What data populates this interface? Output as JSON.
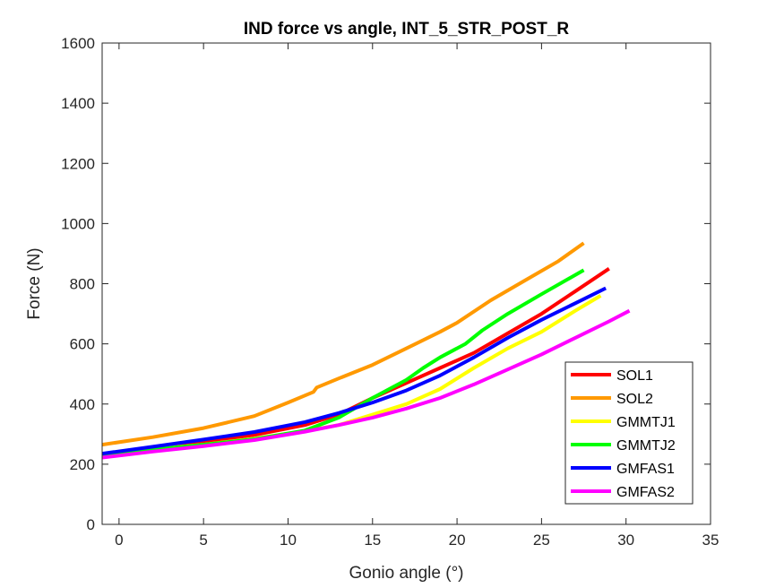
{
  "chart_data": {
    "type": "line",
    "title": "IND force vs angle, INT_5_STR_POST_R",
    "xlabel": "Gonio angle (°)",
    "ylabel": "Force (N)",
    "xlim": [
      -1,
      35
    ],
    "ylim": [
      0,
      1600
    ],
    "xticks": [
      0,
      5,
      10,
      15,
      20,
      25,
      30,
      35
    ],
    "yticks": [
      0,
      200,
      400,
      600,
      800,
      1000,
      1200,
      1400,
      1600
    ],
    "grid": false,
    "legend_position": "bottom-right",
    "series": [
      {
        "name": "SOL1",
        "color": "#ff0000",
        "x": [
          -1,
          2,
          5,
          8,
          11,
          13,
          15,
          17,
          19,
          21,
          23,
          25,
          27,
          29
        ],
        "y": [
          233,
          255,
          275,
          297,
          330,
          365,
          420,
          470,
          520,
          570,
          635,
          700,
          775,
          850
        ]
      },
      {
        "name": "SOL2",
        "color": "#ff9900",
        "x": [
          -1,
          2,
          5,
          8,
          10,
          11.5,
          11.7,
          13,
          15,
          17,
          19,
          20,
          22,
          24,
          26,
          27.5
        ],
        "y": [
          265,
          290,
          320,
          360,
          405,
          440,
          455,
          485,
          530,
          585,
          640,
          670,
          745,
          810,
          875,
          935
        ]
      },
      {
        "name": "GMMTJ1",
        "color": "#ffff00",
        "x": [
          -1,
          2,
          5,
          8,
          11,
          13,
          15,
          17,
          19,
          21,
          23,
          25,
          27,
          28.5
        ],
        "y": [
          232,
          250,
          265,
          285,
          310,
          330,
          365,
          400,
          450,
          520,
          585,
          640,
          710,
          760
        ]
      },
      {
        "name": "GMMTJ2",
        "color": "#00ff00",
        "x": [
          -1,
          2,
          5,
          8,
          11,
          13,
          15,
          17,
          18,
          19,
          20.5,
          21.5,
          23,
          25,
          27.5
        ],
        "y": [
          230,
          248,
          265,
          283,
          312,
          355,
          420,
          480,
          520,
          555,
          600,
          645,
          700,
          765,
          845
        ]
      },
      {
        "name": "GMFAS1",
        "color": "#0000ff",
        "x": [
          -1,
          2,
          5,
          8,
          11,
          13,
          15,
          17,
          19,
          21,
          23,
          25,
          27,
          28.8
        ],
        "y": [
          235,
          258,
          282,
          307,
          340,
          370,
          405,
          445,
          495,
          555,
          620,
          680,
          735,
          785
        ]
      },
      {
        "name": "GMFAS2",
        "color": "#ff00ff",
        "x": [
          -1,
          2,
          5,
          8,
          11,
          13,
          15,
          17,
          19,
          21,
          23,
          25,
          27,
          29,
          30.2
        ],
        "y": [
          222,
          242,
          260,
          280,
          308,
          330,
          355,
          385,
          420,
          465,
          515,
          565,
          620,
          675,
          710
        ]
      }
    ]
  }
}
